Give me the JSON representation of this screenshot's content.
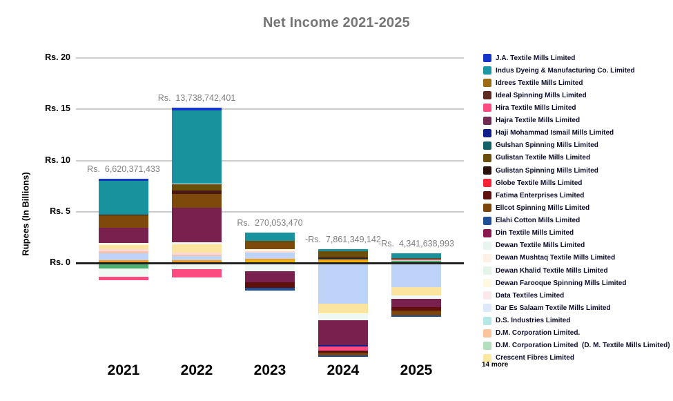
{
  "title": "Net Income 2021-2025",
  "y_axis": {
    "title": "Rupees (In Billions)"
  },
  "legend": {
    "more_label": "14 more",
    "items": [
      {
        "label": "J.A. Textile Mills Limited",
        "color": "#1535c8"
      },
      {
        "label": "Indus Dyeing & Manufacturing Co. Limited",
        "color": "#1b98a4"
      },
      {
        "label": "Idrees Textile Mills Limited",
        "color": "#9a6b10"
      },
      {
        "label": "Ideal Spinning Mills Limited",
        "color": "#5e2a22"
      },
      {
        "label": "Hira Textile Mills Limited",
        "color": "#fb4b80"
      },
      {
        "label": "Hajra Textile Mills Limited",
        "color": "#732a52"
      },
      {
        "label": "Haji Mohammad Ismail Mills Limited",
        "color": "#101d8a"
      },
      {
        "label": "Gulshan Spinning Mills Limited",
        "color": "#136168"
      },
      {
        "label": "Gulistan Textile Mills Limited",
        "color": "#6b4e0a"
      },
      {
        "label": "Gulistan Spinning Mills Limited",
        "color": "#2a100a"
      },
      {
        "label": "Globe Textile Mills Limited",
        "color": "#fb2235"
      },
      {
        "label": "Fatima Enterprises Limited",
        "color": "#5e100c"
      },
      {
        "label": "Ellcot Spinning Mills Limited",
        "color": "#7a440a"
      },
      {
        "label": "Elahi Cotton Mills Limited",
        "color": "#1e4e96"
      },
      {
        "label": "Din Textile Mills Limited",
        "color": "#8c1850"
      },
      {
        "label": "Dewan Textile Mills Limited",
        "color": "#e8f5ee"
      },
      {
        "label": "Dewan Mushtaq Textile Mills Limited",
        "color": "#fdf0e6"
      },
      {
        "label": "Dewan Khalid Textile Mills Limited",
        "color": "#e4f4e8"
      },
      {
        "label": "Dewan Farooque Spinning Mills Limited",
        "color": "#fdf8e0"
      },
      {
        "label": "Data Textiles Limited",
        "color": "#fbe8e8"
      },
      {
        "label": "Dar Es Salaam Textile Mills Limited",
        "color": "#dde8fb"
      },
      {
        "label": "D.S. Industries Limited",
        "color": "#b4e8e8"
      },
      {
        "label": "D.M. Corporation Limited.",
        "color": "#fbc49a"
      },
      {
        "label": "D.M. Corporation Limited  (D. M. Textile Mills Limited)",
        "color": "#b2dfbe"
      },
      {
        "label": "Crescent Fibres Limited",
        "color": "#fce8a0"
      }
    ]
  },
  "colors": {
    "background": "#ffffff",
    "grid": "#cccccc",
    "zero_line": "#212121",
    "title": "#757575",
    "value_label": "#808080",
    "axis_text": "#000000",
    "legend_text": "#0c0c2d"
  },
  "chart_data": {
    "type": "bar",
    "stacked": true,
    "title": "Net Income 2021-2025",
    "ylabel": "Rupees (In Billions)",
    "xlabel": "",
    "grid": true,
    "legend_position": "right",
    "ylim": [
      -9.5,
      20
    ],
    "units_note": "segment values estimated in billions of rupees from bar heights",
    "y_ticks": [
      {
        "label": "Rs. 20",
        "value": 20
      },
      {
        "label": "Rs. 15",
        "value": 15
      },
      {
        "label": "Rs. 10",
        "value": 10
      },
      {
        "label": "Rs. 5",
        "value": 5
      },
      {
        "label": "Rs. 0",
        "value": 0
      }
    ],
    "categories": [
      "2021",
      "2022",
      "2023",
      "2024",
      "2025"
    ],
    "totals": [
      {
        "year": "2021",
        "label": "Rs.  6,620,371,433",
        "value_rupees": 6620371433
      },
      {
        "year": "2022",
        "label": "Rs.  13,738,742,401",
        "value_rupees": 13738742401
      },
      {
        "year": "2023",
        "label": "Rs.  270,053,470",
        "value_rupees": 270053470
      },
      {
        "year": "2024",
        "label": "-Rs.  7,861,349,142",
        "value_rupees": -7861349142
      },
      {
        "year": "2025",
        "label": "-Rs.  4,341,638,993",
        "value_rupees": -4341638993
      }
    ],
    "bars": [
      {
        "year": "2021",
        "total_label": "Rs.  6,620,371,433",
        "segments_above": [
          {
            "company": "J.A. Textile Mills Limited",
            "color": "#1535c8",
            "value": 0.2
          },
          {
            "company": "Indus Dyeing & Manufacturing Co. Limited",
            "color": "#18939e",
            "value": 3.3
          },
          {
            "company": "Gulistan Spinning Mills Limited",
            "color": "#2a100a",
            "value": 0.1
          },
          {
            "company": "Idrees Textile Mills Limited",
            "color": "#7d4a0c",
            "value": 1.2
          },
          {
            "company": "Din Textile Mills Limited",
            "color": "#78204e",
            "value": 1.48
          },
          {
            "company": "Dewan Farooque Spinning Mills Limited",
            "color": "#fdf6e0",
            "value": 0.18
          },
          {
            "company": "Crescent Fibres Limited",
            "color": "#fbe49f",
            "value": 0.45
          },
          {
            "company": "Data Textiles Limited",
            "color": "#fbdad8",
            "value": 0.16
          },
          {
            "company": "Dewan Mushtaq Textile Mills Limited",
            "color": "#f6c2ae",
            "value": 0.22
          },
          {
            "company": "Dar Es Salaam Textile Mills Limited",
            "color": "#bdd3f8",
            "value": 0.66
          },
          {
            "company": "D.M. Corporation Limited.",
            "color": "#f59a23",
            "value": 0.18
          },
          {
            "company": "other",
            "color": "#e8b50c",
            "value": 0.1
          }
        ],
        "segments_below": [
          {
            "company": "D.M. Corporation Limited  (D. M. Textile Mills Limited)",
            "color": "#4cae6c",
            "value": -0.52
          },
          {
            "company": "Dewan Textile Mills Limited",
            "color": "#f0f8f3",
            "value": -0.84
          },
          {
            "company": "Hira Textile Mills Limited",
            "color": "#fb4b80",
            "value": -0.3
          }
        ]
      },
      {
        "year": "2022",
        "total_label": "Rs.  13,738,742,401",
        "segments_above": [
          {
            "company": "J.A. Textile Mills Limited",
            "color": "#1535c8",
            "value": 0.22
          },
          {
            "company": "Indus Dyeing & Manufacturing Co. Limited",
            "color": "#18939e",
            "value": 7.2
          },
          {
            "company": "Gulistan Textile Mills Limited",
            "color": "#6b4e0a",
            "value": 0.62
          },
          {
            "company": "Ideal Spinning Mills Limited",
            "color": "#4a1712",
            "value": 0.33
          },
          {
            "company": "Idrees Textile Mills Limited",
            "color": "#7d4a0c",
            "value": 1.35
          },
          {
            "company": "Din Textile Mills Limited",
            "color": "#78204e",
            "value": 3.4
          },
          {
            "company": "Dewan Khalid Textile Mills Limited",
            "color": "#edf7ee",
            "value": 0.22
          },
          {
            "company": "Crescent Fibres Limited",
            "color": "#fbe49f",
            "value": 0.8
          },
          {
            "company": "Data Textiles Limited",
            "color": "#fbdad8",
            "value": 0.16
          },
          {
            "company": "Dewan Mushtaq Textile Mills Limited",
            "color": "#f6c2ae",
            "value": 0.15
          },
          {
            "company": "Dar Es Salaam Textile Mills Limited",
            "color": "#bdd3f8",
            "value": 0.42
          },
          {
            "company": "D.M. Corporation Limited.",
            "color": "#f59a23",
            "value": 0.16
          },
          {
            "company": "other",
            "color": "#e8b50c",
            "value": 0.1
          }
        ],
        "segments_below": [
          {
            "company": "Dewan Textile Mills Limited",
            "color": "#f0f8f3",
            "value": -0.62
          },
          {
            "company": "Hira Textile Mills Limited",
            "color": "#fb4b80",
            "value": -0.78
          }
        ]
      },
      {
        "year": "2023",
        "total_label": "Rs.  270,053,470",
        "segments_above": [
          {
            "company": "Indus Dyeing & Manufacturing Co. Limited",
            "color": "#18939e",
            "value": 0.8
          },
          {
            "company": "Gulistan Textile Mills Limited",
            "color": "#6b4e0a",
            "value": 0.18
          },
          {
            "company": "Idrees Textile Mills Limited",
            "color": "#7d4a0c",
            "value": 0.62
          },
          {
            "company": "Dewan Farooque Spinning Mills Limited",
            "color": "#fdf6e0",
            "value": 0.22
          },
          {
            "company": "Data Textiles Limited",
            "color": "#fbdad8",
            "value": 0.12
          },
          {
            "company": "Dar Es Salaam Textile Mills Limited",
            "color": "#bdd3f8",
            "value": 0.62
          },
          {
            "company": "D.M. Corporation Limited.",
            "color": "#f59a23",
            "value": 0.12
          },
          {
            "company": "other",
            "color": "#e8b50c",
            "value": 0.28
          }
        ],
        "segments_below": [
          {
            "company": "Dewan Textile Mills Limited",
            "color": "#f0f8f3",
            "value": -0.8
          },
          {
            "company": "Din Textile Mills Limited",
            "color": "#78204e",
            "value": -1.1
          },
          {
            "company": "Fatima Enterprises Limited",
            "color": "#5e100c",
            "value": -0.55
          },
          {
            "company": "Elahi Cotton Mills Limited",
            "color": "#1e4e96",
            "value": -0.24
          }
        ]
      },
      {
        "year": "2024",
        "total_label": "-Rs.  7,861,349,142",
        "segments_above": [
          {
            "company": "Indus Dyeing & Manufacturing Co. Limited",
            "color": "#18939e",
            "value": 0.2
          },
          {
            "company": "Gulistan Textile Mills Limited",
            "color": "#6b4e0a",
            "value": 0.6
          },
          {
            "company": "Ideal Spinning Mills Limited",
            "color": "#4a1712",
            "value": 0.12
          },
          {
            "company": "Gulshan Spinning Mills Limited",
            "color": "#136168",
            "value": 0.1
          },
          {
            "company": "D.M. Corporation Limited.",
            "color": "#f59a23",
            "value": 0.13
          },
          {
            "company": "other",
            "color": "#e8b50c",
            "value": 0.2
          }
        ],
        "segments_below": [
          {
            "company": "Dar Es Salaam Textile Mills Limited",
            "color": "#bdd3f8",
            "value": -4.0
          },
          {
            "company": "Crescent Fibres Limited",
            "color": "#fbe49f",
            "value": -0.95
          },
          {
            "company": "Dewan Textile Mills Limited",
            "color": "#f0f8f3",
            "value": -0.65
          },
          {
            "company": "Din Textile Mills Limited",
            "color": "#78204e",
            "value": -2.4
          },
          {
            "company": "Haji Mohammad Ismail Mills Limited",
            "color": "#101d8a",
            "value": -0.15
          },
          {
            "company": "Hira Textile Mills Limited",
            "color": "#fb4b80",
            "value": -0.4
          },
          {
            "company": "Fatima Enterprises Limited",
            "color": "#5e100c",
            "value": -0.2
          },
          {
            "company": "Ellcot Spinning Mills Limited",
            "color": "#7a440a",
            "value": -0.3
          },
          {
            "company": "Elahi Cotton Mills Limited",
            "color": "#1e4e96",
            "value": -0.12
          }
        ]
      },
      {
        "year": "2025",
        "total_label": "-Rs.  4,341,638,993",
        "segments_above": [
          {
            "company": "Indus Dyeing & Manufacturing Co. Limited",
            "color": "#18939e",
            "value": 0.45
          },
          {
            "company": "Gulistan Textile Mills Limited",
            "color": "#6b4e0a",
            "value": 0.12
          },
          {
            "company": "Ideal Spinning Mills Limited",
            "color": "#4a1712",
            "value": 0.06
          },
          {
            "company": "Data Textiles Limited",
            "color": "#f3b8cb",
            "value": 0.15
          },
          {
            "company": "D.M. Corporation Limited  (D. M. Textile Mills Limited)",
            "color": "#4cae6c",
            "value": 0.1
          },
          {
            "company": "other",
            "color": "#e8b50c",
            "value": 0.07
          }
        ],
        "segments_below": [
          {
            "company": "Dar Es Salaam Textile Mills Limited",
            "color": "#bdd3f8",
            "value": -2.35
          },
          {
            "company": "Crescent Fibres Limited",
            "color": "#fbe49f",
            "value": -0.8
          },
          {
            "company": "Dewan Textile Mills Limited",
            "color": "#f0f8f3",
            "value": -0.35
          },
          {
            "company": "Din Textile Mills Limited",
            "color": "#78204e",
            "value": -0.8
          },
          {
            "company": "Fatima Enterprises Limited",
            "color": "#5e100c",
            "value": -0.35
          },
          {
            "company": "Ellcot Spinning Mills Limited",
            "color": "#7a440a",
            "value": -0.45
          },
          {
            "company": "Elahi Cotton Mills Limited",
            "color": "#1e4e96",
            "value": -0.13
          }
        ]
      }
    ]
  }
}
